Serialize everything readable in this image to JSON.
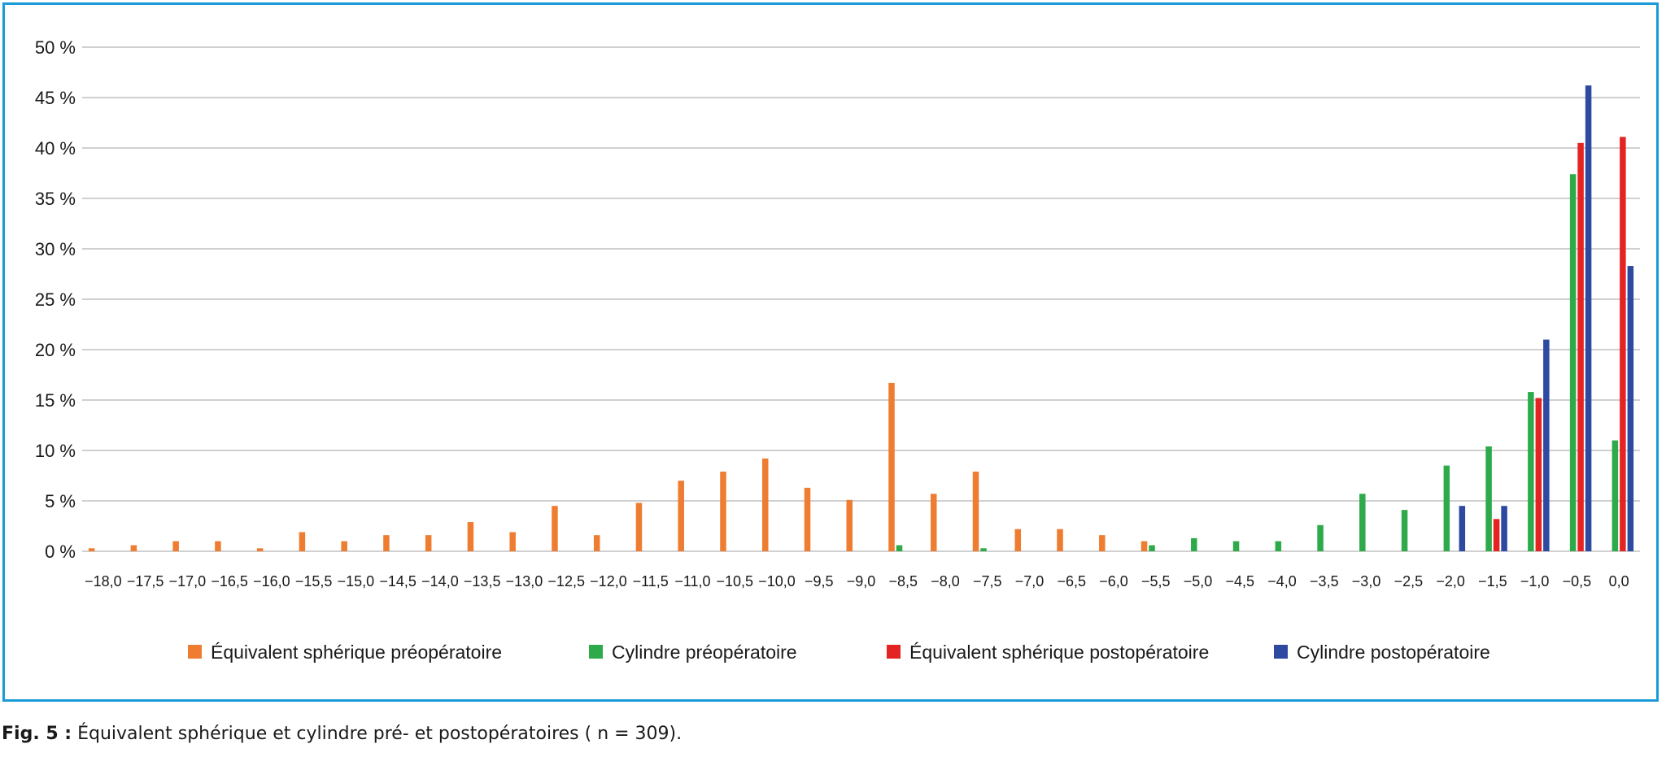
{
  "chart_data": {
    "type": "bar",
    "categories": [
      "−18,0",
      "−17,5",
      "−17,0",
      "−16,5",
      "−16,0",
      "−15,5",
      "−15,0",
      "−14,5",
      "−14,0",
      "−13,5",
      "−13,0",
      "−12,5",
      "−12,0",
      "−11,5",
      "−11,0",
      "−10,5",
      "−10,0",
      "−9,5",
      "−9,0",
      "−8,5",
      "−8,0",
      "−7,5",
      "−7,0",
      "−6,5",
      "−6,0",
      "−5,5",
      "−5,0",
      "−4,5",
      "−4,0",
      "−3,5",
      "−3,0",
      "−2,5",
      "−2,0",
      "−1,5",
      "−1,0",
      "−0,5",
      "0,0"
    ],
    "series": [
      {
        "name": "Équivalent sphérique préopératoire",
        "color": "#ee7d31",
        "values": [
          0.3,
          0.6,
          1.0,
          1.0,
          0.3,
          1.9,
          1.0,
          1.6,
          1.6,
          2.9,
          1.9,
          4.5,
          1.6,
          4.8,
          7.0,
          7.9,
          9.2,
          6.3,
          5.1,
          16.7,
          5.7,
          7.9,
          2.2,
          2.2,
          1.6,
          1.0,
          0,
          0,
          0,
          0,
          0,
          0,
          0,
          0,
          0,
          0,
          0
        ]
      },
      {
        "name": "Cylindre préopératoire",
        "color": "#2eaa4a",
        "values": [
          0,
          0,
          0,
          0,
          0,
          0,
          0,
          0,
          0,
          0,
          0,
          0,
          0,
          0,
          0,
          0,
          0,
          0,
          0,
          0.6,
          0,
          0.3,
          0,
          0,
          0,
          0.6,
          1.3,
          1.0,
          1.0,
          2.6,
          5.7,
          4.1,
          8.5,
          10.4,
          15.8,
          37.4,
          11.0
        ]
      },
      {
        "name": "Équivalent sphérique postopératoire",
        "color": "#e42422",
        "values": [
          0,
          0,
          0,
          0,
          0,
          0,
          0,
          0,
          0,
          0,
          0,
          0,
          0,
          0,
          0,
          0,
          0,
          0,
          0,
          0,
          0,
          0,
          0,
          0,
          0,
          0,
          0,
          0,
          0,
          0,
          0,
          0,
          0,
          3.2,
          15.2,
          40.5,
          41.1
        ]
      },
      {
        "name": "Cylindre postopératoire",
        "color": "#2d4aa0",
        "values": [
          0,
          0,
          0,
          0,
          0,
          0,
          0,
          0,
          0,
          0,
          0,
          0,
          0,
          0,
          0,
          0,
          0,
          0,
          0,
          0,
          0,
          0,
          0,
          0,
          0,
          0,
          0,
          0,
          0,
          0,
          0,
          0,
          4.5,
          4.5,
          21.0,
          46.2,
          28.3
        ]
      }
    ],
    "y_ticks": [
      "0 %",
      "5 %",
      "10 %",
      "15 %",
      "20 %",
      "25 %",
      "30 %",
      "35 %",
      "40 %",
      "45 %",
      "50 %"
    ],
    "ylim": [
      0,
      50
    ],
    "grid": true,
    "legend_position": "bottom"
  },
  "caption": {
    "lead": "Fig. 5 :",
    "text": " Équivalent sphérique et cylindre pré- et postopératoires ( n = 309)."
  }
}
